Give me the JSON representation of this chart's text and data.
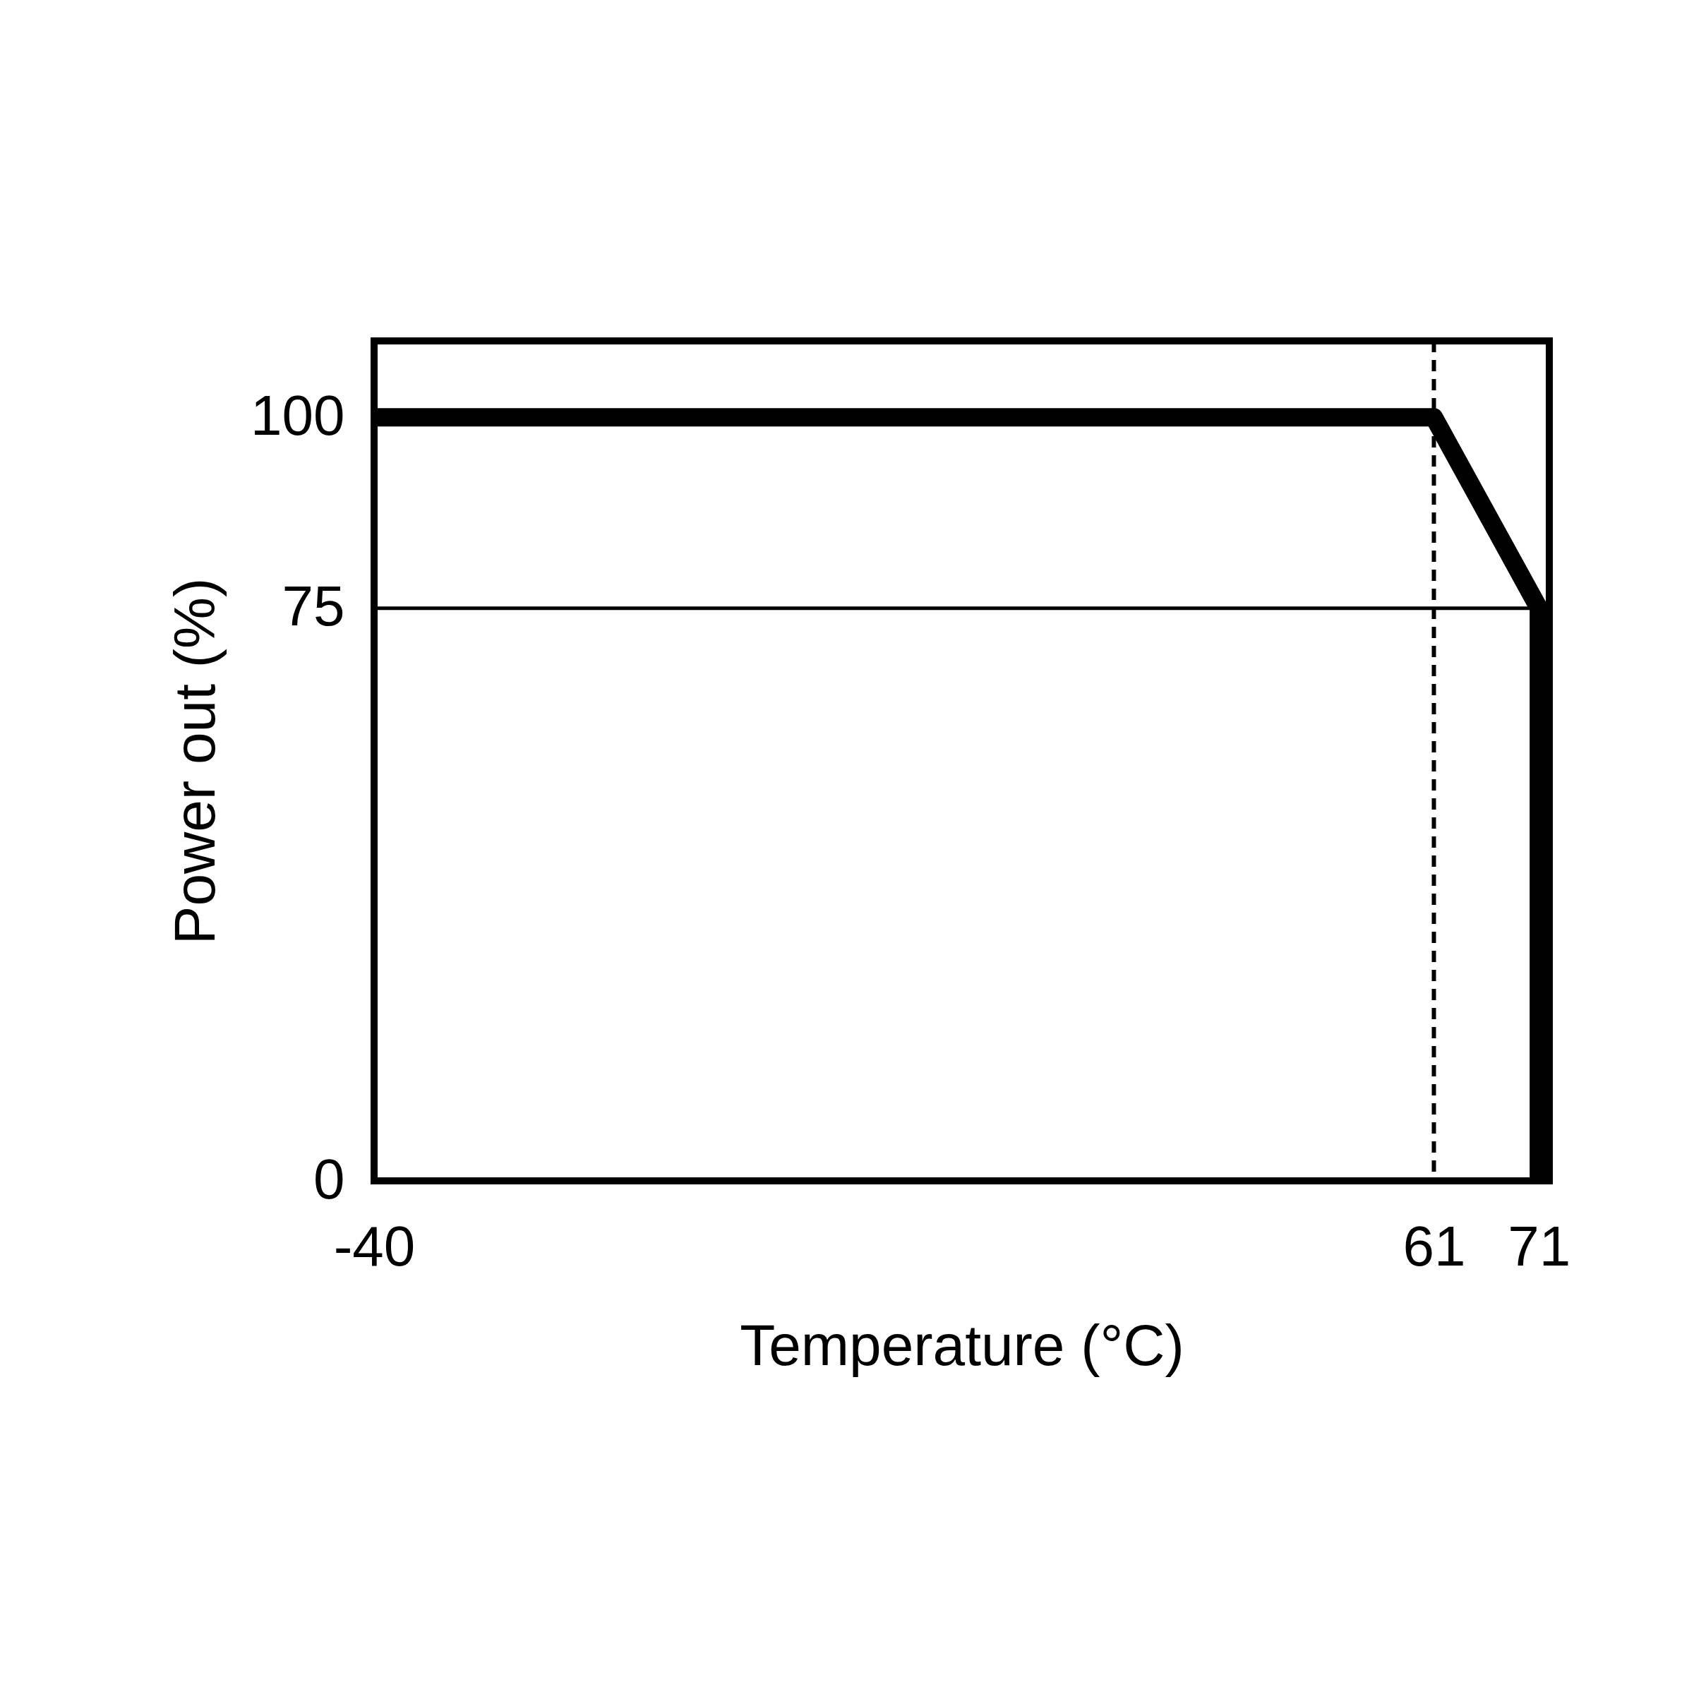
{
  "chart_data": {
    "type": "line",
    "xlabel": "Temperature (°C)",
    "ylabel": "Power out (%)",
    "x": [
      -40,
      61,
      71,
      71
    ],
    "series": [
      {
        "color": "#000000",
        "values": [
          100,
          100,
          75,
          0
        ]
      }
    ],
    "xlim": [
      -40,
      72
    ],
    "ylim": [
      0,
      110
    ],
    "xticks": [
      -40,
      61,
      71
    ],
    "yticks": [
      0,
      75,
      100
    ],
    "ref_lines": [
      {
        "axis": "x",
        "value": 61,
        "color": "#000000",
        "line_style": "dashed"
      },
      {
        "axis": "y",
        "value": 75,
        "color": "#000000",
        "line_style": "solid"
      }
    ]
  }
}
